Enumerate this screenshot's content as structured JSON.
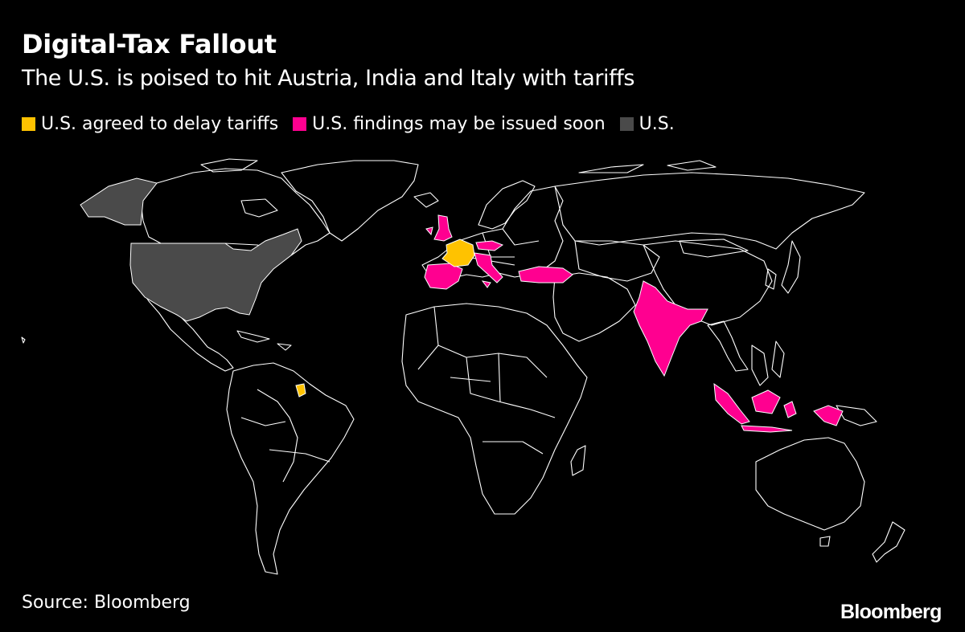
{
  "header": {
    "title": "Digital-Tax Fallout",
    "subtitle": "The U.S. is poised to hit Austria, India and Italy with tariffs"
  },
  "legend": [
    {
      "label": "U.S. agreed to delay tariffs",
      "color": "#FFC200"
    },
    {
      "label": "U.S. findings may be issued soon",
      "color": "#FF0090"
    },
    {
      "label": "U.S.",
      "color": "#4A4A4A"
    }
  ],
  "map": {
    "type": "choropleth-world",
    "border_color": "#FFFFFF",
    "land_fill": "#000000",
    "highlighted_regions": {
      "delay_tariffs": [
        "France",
        "French Guiana"
      ],
      "findings_soon": [
        "United Kingdom",
        "Spain",
        "Italy",
        "Austria",
        "Czech Republic",
        "Turkey",
        "India",
        "Indonesia"
      ],
      "us": [
        "United States"
      ]
    }
  },
  "footer": {
    "source": "Source: Bloomberg",
    "brand": "Bloomberg"
  }
}
